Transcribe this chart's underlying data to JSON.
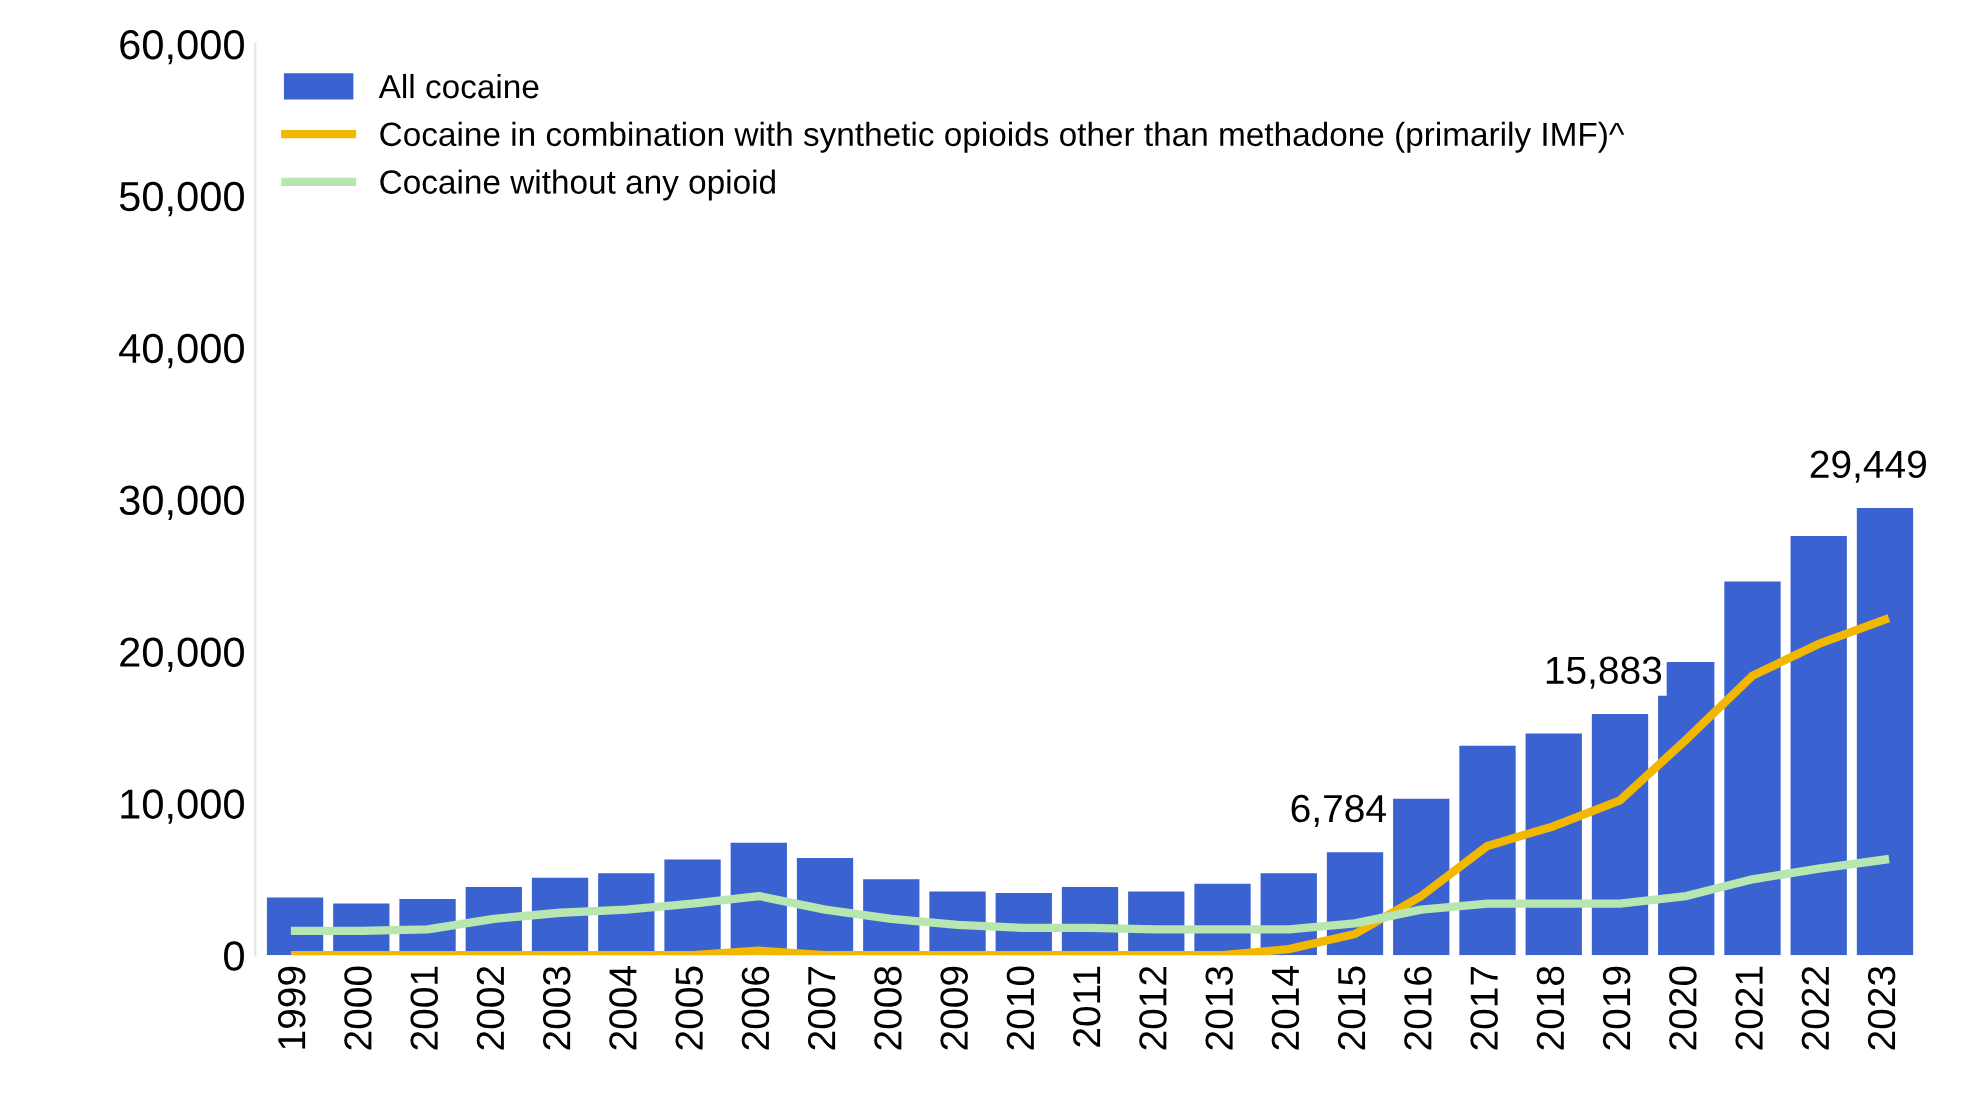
{
  "chart_data": {
    "type": "bar",
    "categories": [
      "1999",
      "2000",
      "2001",
      "2002",
      "2003",
      "2004",
      "2005",
      "2006",
      "2007",
      "2008",
      "2009",
      "2010",
      "2011",
      "2012",
      "2013",
      "2014",
      "2015",
      "2016",
      "2017",
      "2018",
      "2019",
      "2020",
      "2021",
      "2022",
      "2023"
    ],
    "series": [
      {
        "name": "All cocaine",
        "color": "#3a62d0",
        "values": [
          3800,
          3400,
          3700,
          4500,
          5100,
          5400,
          6300,
          7400,
          6400,
          5000,
          4200,
          4100,
          4500,
          4200,
          4700,
          5400,
          6784,
          10300,
          13800,
          14600,
          15883,
          19300,
          24600,
          27600,
          29449
        ],
        "value_labels": [
          null,
          null,
          null,
          null,
          null,
          null,
          null,
          null,
          null,
          null,
          null,
          null,
          null,
          null,
          null,
          null,
          "6,784",
          null,
          null,
          null,
          "15,883",
          null,
          null,
          null,
          "29,449"
        ]
      },
      {
        "name": "Cocaine in combination with synthetic opioids other than methadone (primarily IMF)^",
        "type": "line",
        "color": "#f2b800",
        "values": [
          0,
          0,
          0,
          0,
          0,
          0,
          0,
          300,
          0,
          0,
          0,
          0,
          0,
          0,
          0,
          400,
          1400,
          3900,
          7200,
          8500,
          10200,
          14200,
          18400,
          20500,
          22100
        ]
      },
      {
        "name": "Cocaine without any opioid",
        "type": "line",
        "color": "#b8e6b0",
        "values": [
          1600,
          1600,
          1700,
          2400,
          2800,
          3000,
          3400,
          3900,
          3000,
          2400,
          2000,
          1800,
          1800,
          1700,
          1700,
          1700,
          2100,
          3000,
          3400,
          3400,
          3400,
          3900,
          5000,
          5700,
          6300
        ]
      }
    ],
    "ylim": [
      0,
      60000
    ],
    "yticks": [
      {
        "value": 0,
        "label": "0"
      },
      {
        "value": 10000,
        "label": "10,000"
      },
      {
        "value": 20000,
        "label": "20,000"
      },
      {
        "value": 30000,
        "label": "30,000"
      },
      {
        "value": 40000,
        "label": "40,000"
      },
      {
        "value": 50000,
        "label": "50,000"
      },
      {
        "value": 60000,
        "label": "60,000"
      }
    ],
    "grid": false,
    "legend": "top left",
    "marker": "none",
    "line_style": "solid"
  }
}
